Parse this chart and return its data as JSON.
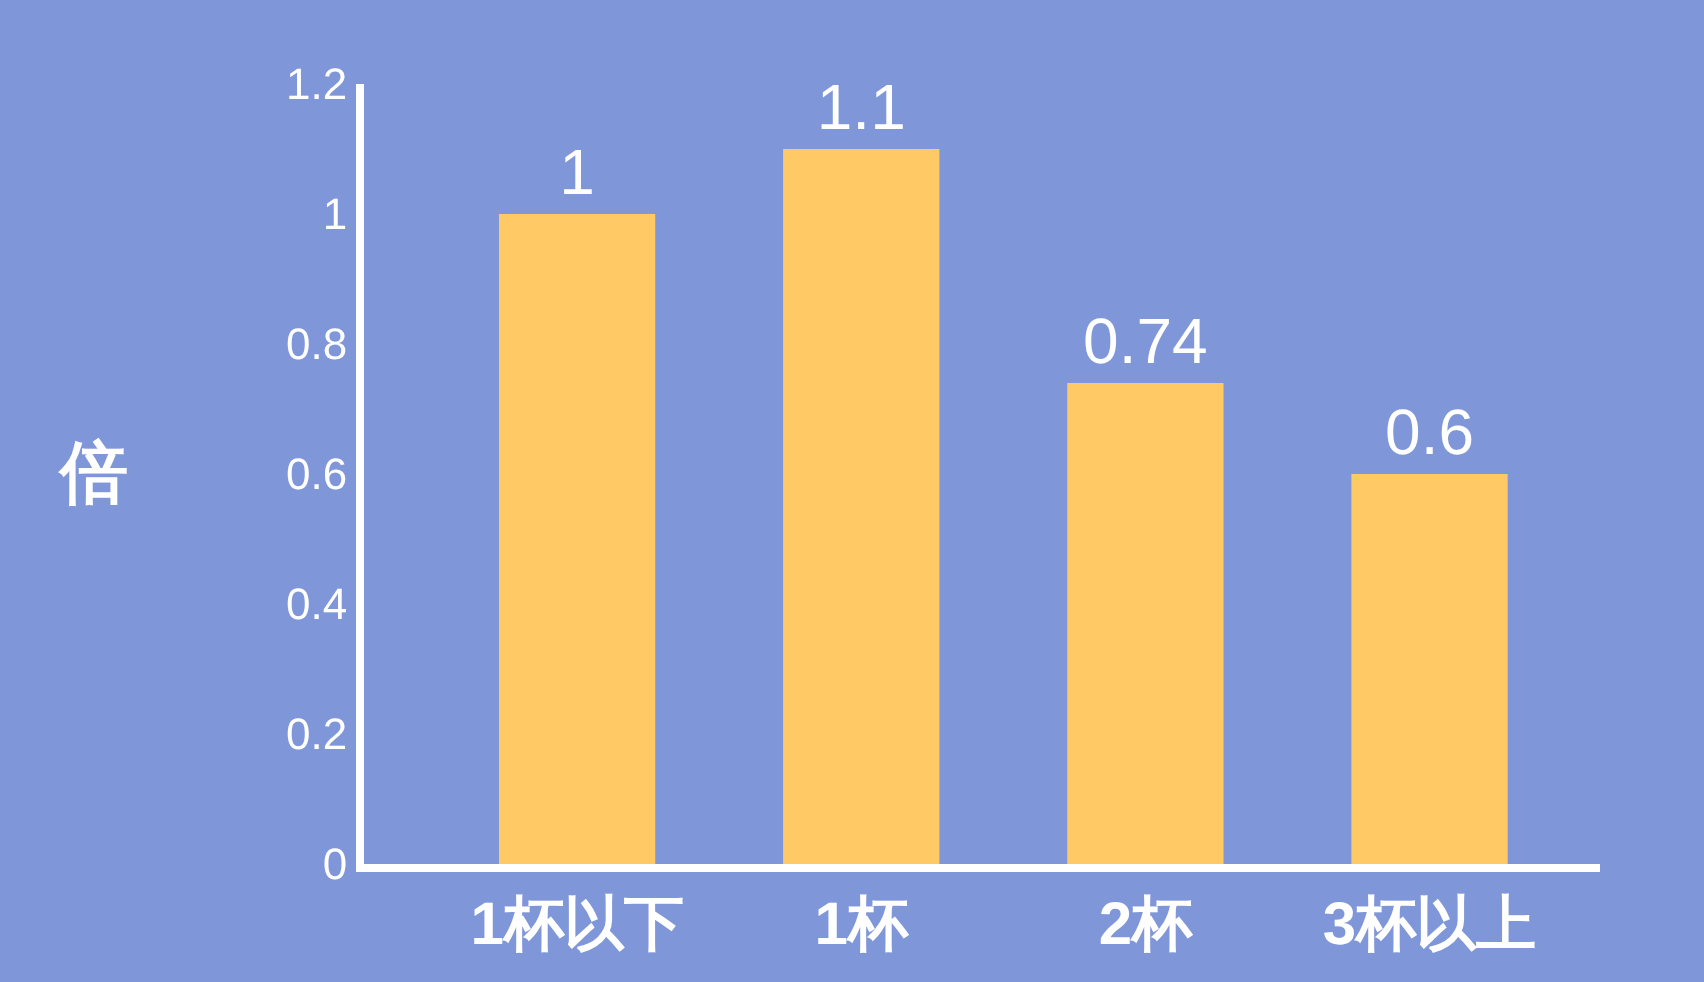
{
  "chart_data": {
    "type": "bar",
    "ylabel": "倍",
    "categories": [
      "1杯以下",
      "1杯",
      "2杯",
      "3杯以上"
    ],
    "values": [
      1,
      1.1,
      0.74,
      0.6
    ],
    "color": "#ffc966",
    "ylim": [
      0,
      1.2
    ],
    "yticks": [
      0,
      0.2,
      0.4,
      0.6,
      0.8,
      1,
      1.2
    ],
    "data_labels": true
  }
}
